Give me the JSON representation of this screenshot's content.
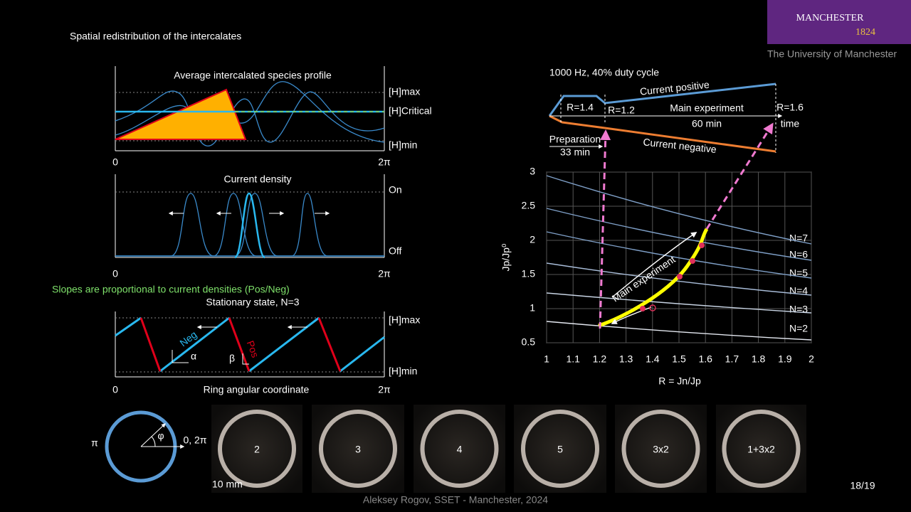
{
  "title": "Spatial redistribution of the intercalates",
  "logo": {
    "name": "MANCHESTER",
    "year": "1824",
    "university": "The University of Manchester"
  },
  "panel_profile": {
    "title": "Average intercalated species profile",
    "labels": [
      "[H]max",
      "[H]Critical",
      "[H]min"
    ],
    "x_start": "0",
    "x_end": "2π"
  },
  "panel_current": {
    "title": "Current density",
    "labels": [
      "On",
      "Off"
    ],
    "x_start": "0",
    "x_end": "2π"
  },
  "slopes_note": "Slopes are proportional to current densities (Pos/Neg)",
  "panel_stationary": {
    "title": "Stationary state, N=3",
    "labels": [
      "[H]max",
      "[H]min"
    ],
    "neg": "Neg",
    "pos": "Pos",
    "alpha": "α",
    "beta": "β",
    "x_start": "0",
    "x_label": "Ring angular coordinate",
    "x_end": "2π"
  },
  "timing": {
    "caption": "1000 Hz, 40% duty cycle",
    "r_start": "R=1.4",
    "r_main": "R=1.2",
    "main": "Main experiment",
    "main_duration": "60 min",
    "r_end": "R=1.6",
    "time": "time",
    "positive": "Current positive",
    "negative": "Current negative",
    "prep": "Preparation",
    "prep_duration": "33 min"
  },
  "chart": {
    "xlabel": "R = Jn/Jp",
    "ylabel": "Jp/Jp⁰",
    "xlim": [
      1,
      2
    ],
    "ylim": [
      0.5,
      3
    ],
    "xticks": [
      1,
      1.1,
      1.2,
      1.3,
      1.4,
      1.5,
      1.6,
      1.7,
      1.8,
      1.9,
      2
    ],
    "yticks": [
      0.5,
      1,
      1.5,
      2,
      2.5,
      3
    ],
    "curve_labels": [
      "N=7",
      "N=6",
      "N=5",
      "N=4",
      "N=3",
      "N=2"
    ],
    "annotation": "Main experiment"
  },
  "ring": {
    "pi": "π",
    "phi": "φ",
    "zero": "0, 2π"
  },
  "photos": {
    "scale": "10 mm",
    "labels": [
      "2",
      "3",
      "4",
      "5",
      "3x2",
      "1+3x2"
    ]
  },
  "footer": "Aleksey Rogov, SSET - Manchester, 2024",
  "page": "18/19"
}
